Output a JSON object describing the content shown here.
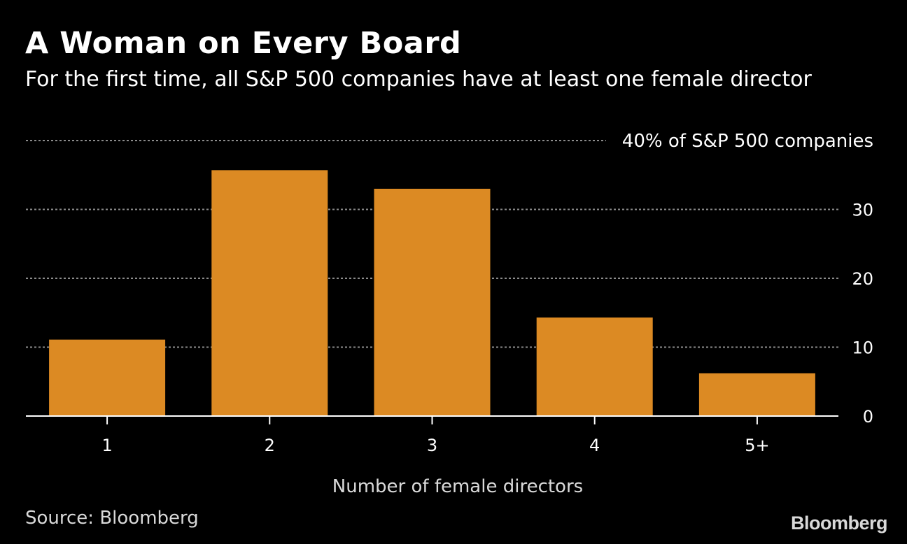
{
  "header": {
    "title": "A Woman on Every Board",
    "subtitle": "For the first time, all S&P 500 companies have at least one female director"
  },
  "footer": {
    "source": "Source: Bloomberg",
    "brand": "Bloomberg"
  },
  "colors": {
    "background": "#000000",
    "bar": "#dc8a23",
    "text": "#ffffff",
    "grid": "#8c8c8c",
    "axis": "#ffffff"
  },
  "chart_data": {
    "type": "bar",
    "title": "A Woman on Every Board",
    "subtitle": "For the first time, all S&P 500 companies have at least one female director",
    "xlabel": "Number of female directors",
    "ylabel": "",
    "unit_label": "40% of S&P 500 companies",
    "categories": [
      "1",
      "2",
      "3",
      "4",
      "5+"
    ],
    "values": [
      11.1,
      35.7,
      33.0,
      14.3,
      6.2
    ],
    "ylim": [
      0,
      40
    ],
    "yticks": [
      0,
      10,
      20,
      30
    ],
    "grid": true
  }
}
